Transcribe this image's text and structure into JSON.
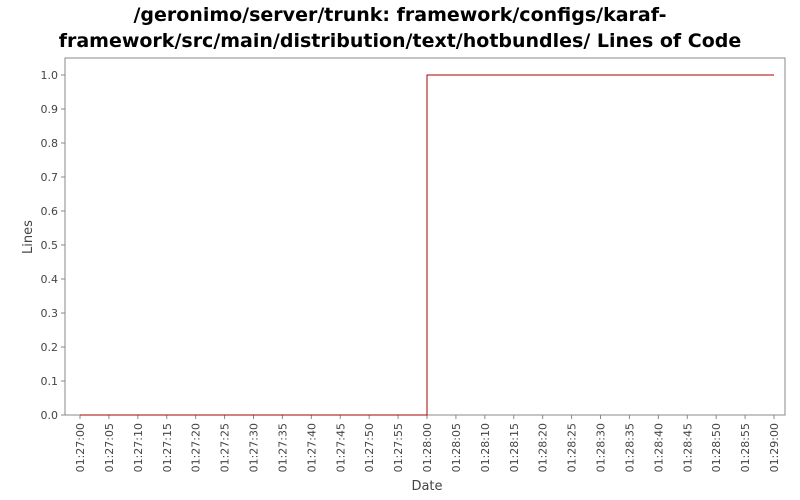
{
  "chart_data": {
    "type": "line",
    "title_line1": "/geronimo/server/trunk: framework/configs/karaf-",
    "title_line2": "framework/src/main/distribution/text/hotbundles/ Lines of Code",
    "xlabel": "Date",
    "ylabel": "Lines",
    "ylim": [
      0,
      1.0
    ],
    "yticks": [
      "0.0",
      "0.1",
      "0.2",
      "0.3",
      "0.4",
      "0.5",
      "0.6",
      "0.7",
      "0.8",
      "0.9",
      "1.0"
    ],
    "xticks": [
      "01:27:00",
      "01:27:05",
      "01:27:10",
      "01:27:15",
      "01:27:20",
      "01:27:25",
      "01:27:30",
      "01:27:35",
      "01:27:40",
      "01:27:45",
      "01:27:50",
      "01:27:55",
      "01:28:00",
      "01:28:05",
      "01:28:10",
      "01:28:15",
      "01:28:20",
      "01:28:25",
      "01:28:30",
      "01:28:35",
      "01:28:40",
      "01:28:45",
      "01:28:50",
      "01:28:55",
      "01:29:00"
    ],
    "xlim": [
      "01:27:00",
      "01:29:00"
    ],
    "series": [
      {
        "color": "#aa0000",
        "step": true,
        "points": [
          {
            "x": "01:27:00",
            "y": 0
          },
          {
            "x": "01:28:00",
            "y": 0
          },
          {
            "x": "01:28:00",
            "y": 1
          },
          {
            "x": "01:29:00",
            "y": 1
          }
        ]
      }
    ],
    "grid": false,
    "legend": "none"
  }
}
